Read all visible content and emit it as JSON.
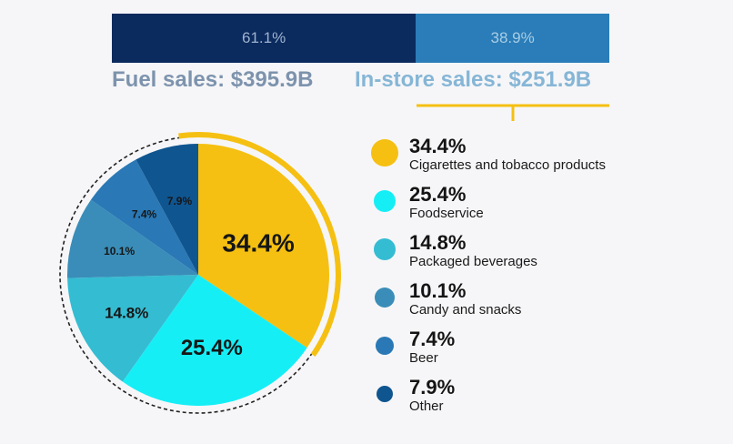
{
  "colors": {
    "fuel_bar": "#0b2a5e",
    "instore_bar": "#2a7db8",
    "fuel_text": "#7d93ad",
    "instore_text": "#86b6d6",
    "accent_yellow": "#f5c011"
  },
  "sales_split": {
    "fuel_pct": "61.1%",
    "instore_pct": "38.9%",
    "fuel_label": "Fuel sales: $395.9B",
    "instore_label": "In-store sales: $251.9B"
  },
  "chart_data": {
    "type": "pie",
    "title": "",
    "slices": [
      {
        "name": "Cigarettes and tobacco products",
        "value": 34.4,
        "label": "34.4%",
        "color": "#f5c011"
      },
      {
        "name": "Foodservice",
        "value": 25.4,
        "label": "25.4%",
        "color": "#16eef6"
      },
      {
        "name": "Packaged beverages",
        "value": 14.8,
        "label": "14.8%",
        "color": "#34bcd2"
      },
      {
        "name": "Candy and snacks",
        "value": 10.1,
        "label": "10.1%",
        "color": "#3a8db8"
      },
      {
        "name": "Beer",
        "value": 7.4,
        "label": "7.4%",
        "color": "#2a78b5"
      },
      {
        "name": "Other",
        "value": 7.9,
        "label": "7.9%",
        "color": "#0f5590"
      }
    ],
    "legend_position": "right"
  },
  "legend": [
    {
      "pct": "34.4%",
      "name": "Cigarettes and tobacco products"
    },
    {
      "pct": "25.4%",
      "name": "Foodservice"
    },
    {
      "pct": "14.8%",
      "name": "Packaged beverages"
    },
    {
      "pct": "10.1%",
      "name": "Candy and snacks"
    },
    {
      "pct": "7.4%",
      "name": "Beer"
    },
    {
      "pct": "7.9%",
      "name": "Other"
    }
  ]
}
